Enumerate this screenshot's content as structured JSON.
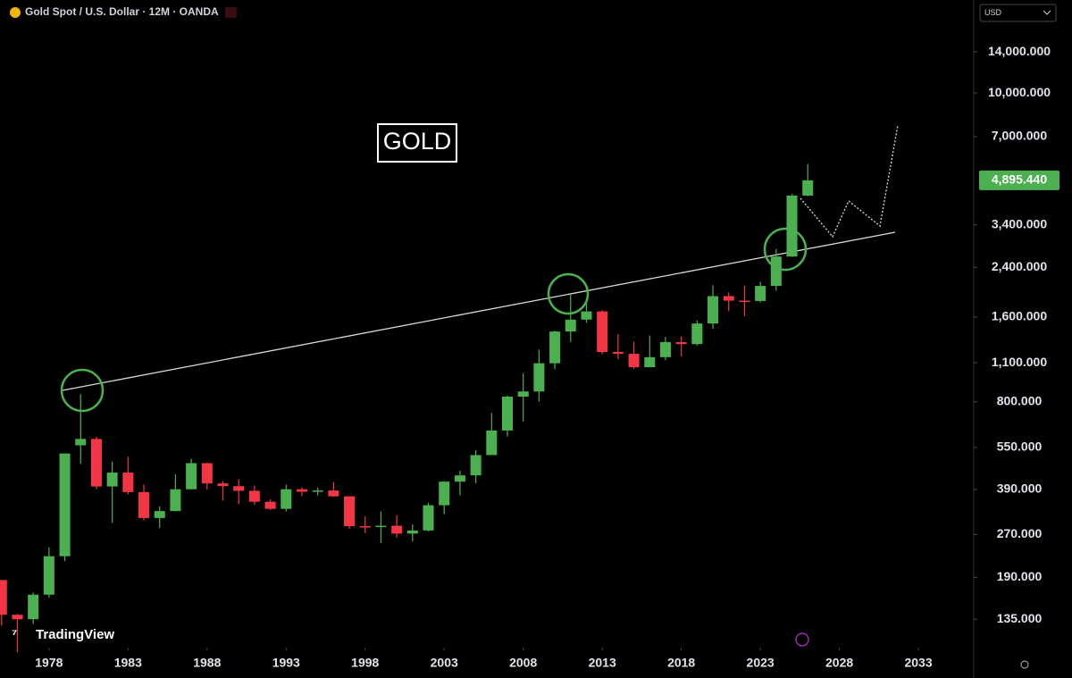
{
  "chart_data": {
    "type": "candlestick",
    "title": "Gold Spot / U.S. Dollar · 12M · OANDA",
    "annotation": "GOLD",
    "currency": "USD",
    "brand": "TradingView",
    "log_scale": true,
    "up_color": "#4caf50",
    "down_color": "#f23645",
    "x": [
      1975,
      1976,
      1977,
      1978,
      1979,
      1980,
      1981,
      1982,
      1983,
      1984,
      1985,
      1986,
      1987,
      1988,
      1989,
      1990,
      1991,
      1992,
      1993,
      1994,
      1995,
      1996,
      1997,
      1998,
      1999,
      2000,
      2001,
      2002,
      2003,
      2004,
      2005,
      2006,
      2007,
      2008,
      2009,
      2010,
      2011,
      2012,
      2013,
      2014,
      2015,
      2016,
      2017,
      2018,
      2019,
      2020,
      2021,
      2022,
      2023,
      2024,
      2025,
      2026
    ],
    "open": [
      186,
      140,
      135,
      165,
      226,
      560,
      590,
      400,
      448,
      382,
      309,
      327,
      391,
      484,
      410,
      401,
      386,
      353,
      333,
      391,
      383,
      387,
      369,
      289,
      288,
      290,
      272,
      279,
      343,
      416,
      438,
      517,
      632,
      834,
      870,
      1096,
      1421,
      1566,
      1675,
      1202,
      1184,
      1061,
      1152,
      1303,
      1282,
      1517,
      1898,
      1829,
      1824,
      2063,
      2624,
      4320
    ],
    "high": [
      186,
      141,
      168,
      243,
      524,
      850,
      600,
      490,
      510,
      406,
      340,
      442,
      502,
      486,
      418,
      424,
      403,
      360,
      406,
      397,
      396,
      415,
      369,
      313,
      326,
      316,
      293,
      350,
      418,
      455,
      538,
      730,
      842,
      1011,
      1226,
      1431,
      1920,
      1796,
      1694,
      1392,
      1308,
      1375,
      1358,
      1366,
      1557,
      2075,
      1959,
      2070,
      2135,
      2790,
      4381,
      5600
    ],
    "low": [
      128,
      103,
      130,
      161,
      217,
      481,
      391,
      297,
      375,
      303,
      285,
      326,
      390,
      390,
      356,
      346,
      344,
      330,
      326,
      370,
      372,
      367,
      283,
      273,
      252,
      263,
      255,
      277,
      319,
      372,
      411,
      520,
      602,
      681,
      802,
      1044,
      1308,
      1526,
      1180,
      1131,
      1046,
      1061,
      1123,
      1160,
      1266,
      1451,
      1677,
      1614,
      1804,
      1984,
      2614,
      4300
    ],
    "close": [
      140,
      135,
      165,
      226,
      524,
      590,
      400,
      448,
      382,
      309,
      327,
      391,
      484,
      410,
      401,
      386,
      353,
      333,
      391,
      383,
      387,
      369,
      289,
      288,
      290,
      272,
      279,
      343,
      416,
      438,
      517,
      632,
      834,
      870,
      1096,
      1421,
      1566,
      1675,
      1202,
      1184,
      1061,
      1152,
      1303,
      1282,
      1517,
      1898,
      1829,
      1824,
      2063,
      2624,
      4320,
      4895.44
    ],
    "last_price": {
      "value": 4895.44,
      "label": "4,895.440"
    },
    "xlim": [
      1974.9,
      2036.5
    ],
    "xticks": [
      1978,
      1983,
      1988,
      1993,
      1998,
      2003,
      2008,
      2013,
      2018,
      2023,
      2028,
      2033
    ],
    "ylim": [
      107,
      21400
    ],
    "yticks": [
      {
        "value": 135,
        "label": "135.000"
      },
      {
        "value": 190,
        "label": "190.000"
      },
      {
        "value": 270,
        "label": "270.000"
      },
      {
        "value": 390,
        "label": "390.000"
      },
      {
        "value": 550,
        "label": "550.000"
      },
      {
        "value": 800,
        "label": "800.000"
      },
      {
        "value": 1100,
        "label": "1,100.000"
      },
      {
        "value": 1600,
        "label": "1,600.000"
      },
      {
        "value": 2400,
        "label": "2,400.000"
      },
      {
        "value": 3400,
        "label": "3,400.000"
      },
      {
        "value": 7000,
        "label": "7,000.000"
      },
      {
        "value": 10000,
        "label": "10,000.000"
      },
      {
        "value": 14000,
        "label": "14,000.000"
      }
    ]
  }
}
